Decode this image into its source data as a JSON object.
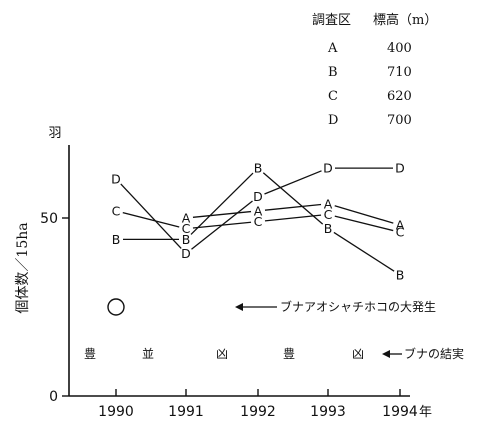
{
  "legend_table": {
    "header": [
      "調査区",
      "標高（m）"
    ],
    "rows": [
      {
        "site": "A",
        "elevation": "400"
      },
      {
        "site": "B",
        "elevation": "710"
      },
      {
        "site": "C",
        "elevation": "620"
      },
      {
        "site": "D",
        "elevation": "700"
      }
    ]
  },
  "annotations": {
    "outbreak": "ブナアオシャチホコの大発生",
    "fruiting": "ブナの結実",
    "fruiting_marks": [
      "豊",
      "並",
      "凶",
      "豊",
      "凶"
    ]
  },
  "chart_data": {
    "type": "line",
    "x": [
      1990,
      1991,
      1992,
      1993,
      1994
    ],
    "x_tick_labels": [
      "1990",
      "1991",
      "1992",
      "1993",
      "1994"
    ],
    "x_unit": "年",
    "ylabel": "個体数／15ha",
    "y_unit": "羽",
    "ylim": [
      0,
      100
    ],
    "y_ticks": [
      0,
      50
    ],
    "grid": false,
    "series": [
      {
        "name": "A",
        "values": [
          null,
          50,
          52,
          54,
          48
        ]
      },
      {
        "name": "B",
        "values": [
          44,
          44,
          64,
          47,
          34
        ]
      },
      {
        "name": "C",
        "values": [
          52,
          47,
          49,
          51,
          46
        ]
      },
      {
        "name": "D",
        "values": [
          61,
          40,
          56,
          64,
          64
        ]
      }
    ],
    "outbreak_year": 1990,
    "outbreak_marker_value": 25,
    "fruiting_row_value": 12
  }
}
